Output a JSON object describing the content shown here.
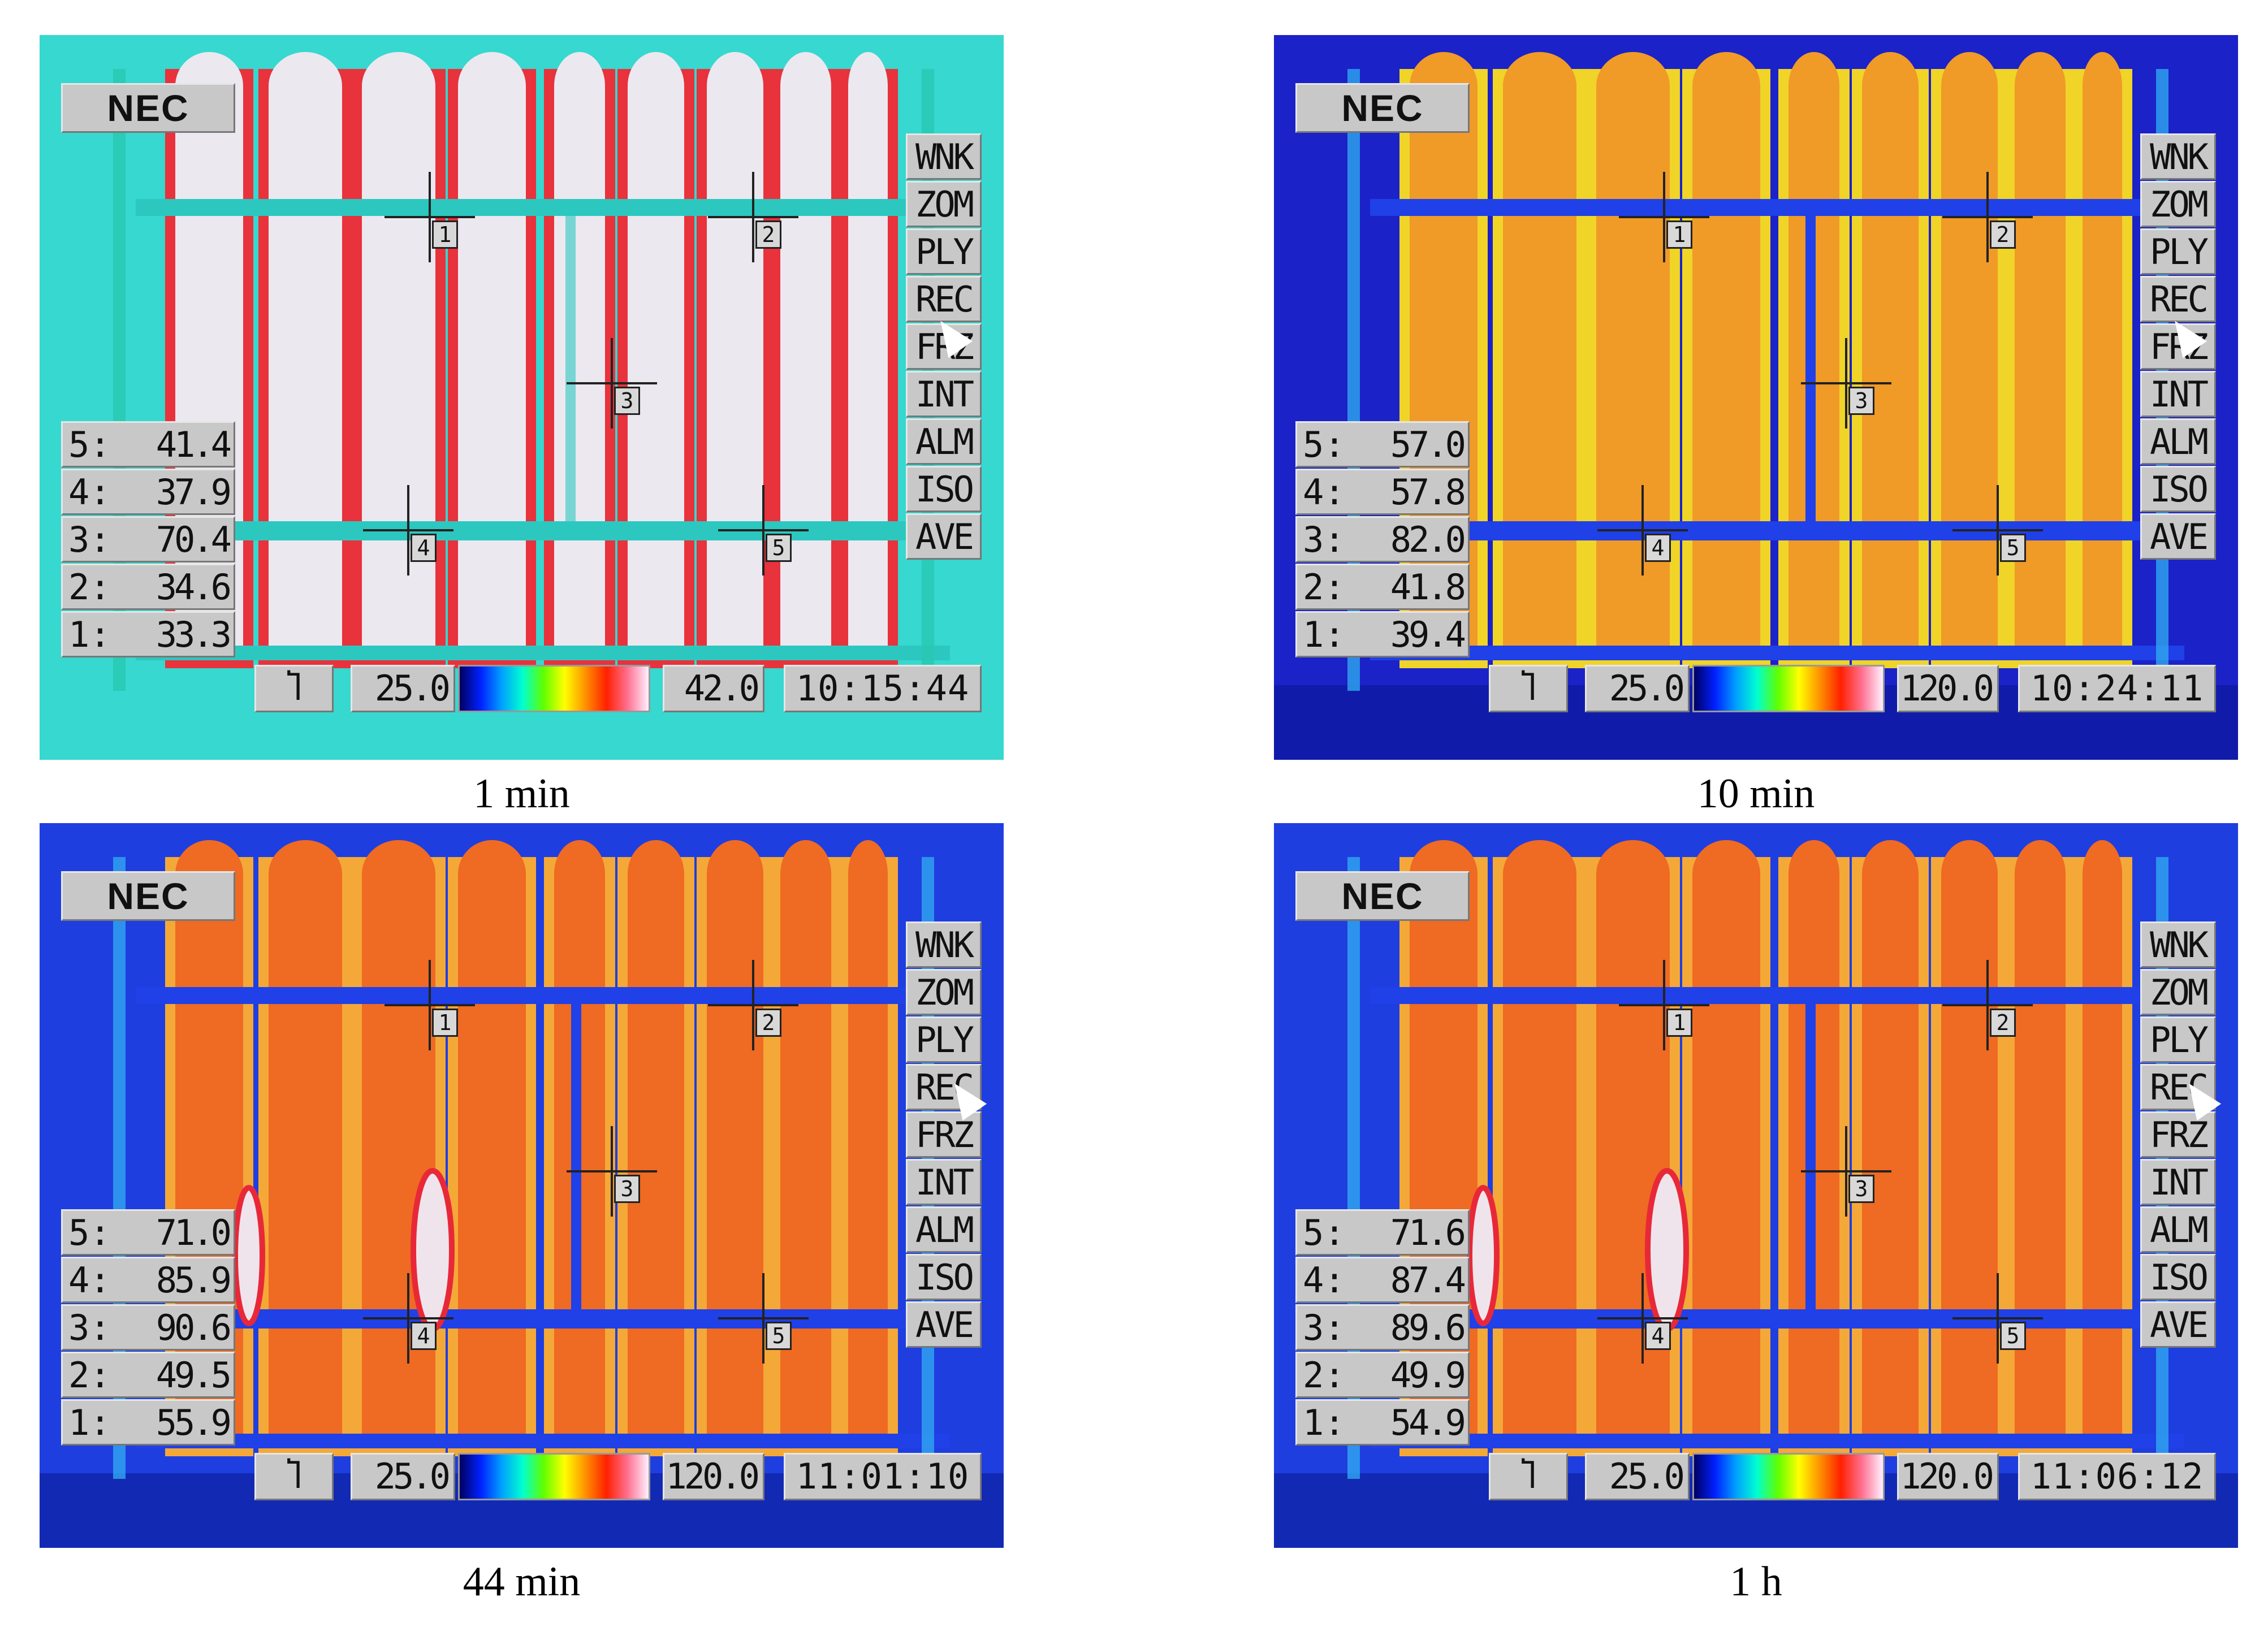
{
  "panels": [
    {
      "caption": "1 min",
      "thermal_colors": {
        "background": "#36d8cf",
        "hot": "#ece8f0",
        "warm": "#e8323c"
      },
      "logo": "NEC",
      "menu": [
        "WNK",
        "ZOM",
        "PLY",
        "REC",
        "FRZ",
        "INT",
        "ALM",
        "ISO",
        "AVE"
      ],
      "readouts": [
        {
          "label": "5:",
          "value": "41.4"
        },
        {
          "label": "4:",
          "value": "37.9"
        },
        {
          "label": "3:",
          "value": "70.4"
        },
        {
          "label": "2:",
          "value": "34.6"
        },
        {
          "label": "1:",
          "value": "33.3"
        }
      ],
      "scale_icon": "Ⴈ",
      "scale_min": "25.0",
      "scale_max": "42.0",
      "time": "10:15:44",
      "markers": [
        "1",
        "2",
        "3",
        "4",
        "5"
      ]
    },
    {
      "caption": "10 min",
      "thermal_colors": {
        "background": "#1a22c8",
        "hot": "#f09a28",
        "warm": "#f0d428"
      },
      "logo": "NEC",
      "menu": [
        "WNK",
        "ZOM",
        "PLY",
        "REC",
        "FRZ",
        "INT",
        "ALM",
        "ISO",
        "AVE"
      ],
      "readouts": [
        {
          "label": "5:",
          "value": "57.0"
        },
        {
          "label": "4:",
          "value": "57.8"
        },
        {
          "label": "3:",
          "value": "82.0"
        },
        {
          "label": "2:",
          "value": "41.8"
        },
        {
          "label": "1:",
          "value": "39.4"
        }
      ],
      "scale_icon": "Ⴈ",
      "scale_min": "25.0",
      "scale_max": "120.0",
      "time": "10:24:11",
      "markers": [
        "1",
        "2",
        "3",
        "4",
        "5"
      ]
    },
    {
      "caption": "44 min",
      "thermal_colors": {
        "background": "#1e3ee0",
        "hot": "#ef6a22",
        "warm": "#f4a838"
      },
      "logo": "NEC",
      "menu": [
        "WNK",
        "ZOM",
        "PLY",
        "REC",
        "FRZ",
        "INT",
        "ALM",
        "ISO",
        "AVE"
      ],
      "readouts": [
        {
          "label": "5:",
          "value": "71.0"
        },
        {
          "label": "4:",
          "value": "85.9"
        },
        {
          "label": "3:",
          "value": "90.6"
        },
        {
          "label": "2:",
          "value": "49.5"
        },
        {
          "label": "1:",
          "value": "55.9"
        }
      ],
      "scale_icon": "Ⴈ",
      "scale_min": "25.0",
      "scale_max": "120.0",
      "time": "11:01:10",
      "markers": [
        "1",
        "2",
        "3",
        "4",
        "5"
      ]
    },
    {
      "caption": "1 h",
      "thermal_colors": {
        "background": "#1e3ee0",
        "hot": "#ef6a22",
        "warm": "#f4a838"
      },
      "logo": "NEC",
      "menu": [
        "WNK",
        "ZOM",
        "PLY",
        "REC",
        "FRZ",
        "INT",
        "ALM",
        "ISO",
        "AVE"
      ],
      "readouts": [
        {
          "label": "5:",
          "value": "71.6"
        },
        {
          "label": "4:",
          "value": "87.4"
        },
        {
          "label": "3:",
          "value": "89.6"
        },
        {
          "label": "2:",
          "value": "49.9"
        },
        {
          "label": "1:",
          "value": "54.9"
        }
      ],
      "scale_icon": "Ⴈ",
      "scale_min": "25.0",
      "scale_max": "120.0",
      "time": "11:06:12",
      "markers": [
        "1",
        "2",
        "3",
        "4",
        "5"
      ]
    }
  ]
}
